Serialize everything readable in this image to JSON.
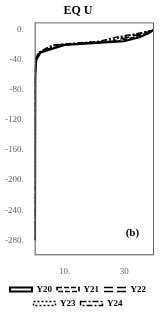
{
  "chart_data": {
    "type": "line",
    "title": "EQ U",
    "xlim": [
      0,
      40
    ],
    "ylim": [
      -300,
      10
    ],
    "xticks": [
      {
        "value": 10,
        "label": "10."
      },
      30
    ],
    "yticks": [
      {
        "value": 0,
        "label": "0."
      },
      {
        "value": -40,
        "label": "-40."
      },
      {
        "value": -80,
        "label": "-80."
      },
      {
        "value": -120,
        "label": "-120."
      },
      {
        "value": -160,
        "label": "-160."
      },
      {
        "value": -200,
        "label": "-200."
      },
      {
        "value": -240,
        "label": "-240."
      },
      {
        "value": -280,
        "label": "-280."
      }
    ],
    "grid": false,
    "legend": "bottom",
    "annotations": [
      {
        "text": "(b)",
        "x": 35,
        "y": -278
      }
    ],
    "series": [
      {
        "name": "Y20",
        "color": "#000000",
        "line_style": "solid",
        "x": [
          40,
          38,
          35,
          30,
          10,
          2,
          0.5,
          0.2,
          0.1,
          0.1,
          0.1,
          0.1,
          0.1,
          0.1,
          0.1
        ],
        "values": [
          0,
          -5,
          -10,
          -15,
          -20,
          -30,
          -40,
          -60,
          -80,
          -100,
          -140,
          -180,
          -220,
          -260,
          -280
        ]
      },
      {
        "name": "Y21",
        "color": "#000000",
        "line_style": "dashed",
        "x": [
          40,
          37,
          33,
          28,
          9,
          1.8,
          0.4,
          0.2,
          0.1,
          0.1,
          0.1,
          0.1,
          0.1,
          0.1,
          0.1
        ],
        "values": [
          0,
          -5,
          -10,
          -15,
          -20,
          -30,
          -40,
          -60,
          -80,
          -100,
          -140,
          -180,
          -220,
          -260,
          -280
        ]
      },
      {
        "name": "Y22",
        "color": "#000000",
        "line_style": "long_dashed",
        "x": [
          40,
          36,
          31,
          26,
          8,
          1.6,
          0.3,
          0.1,
          0.1,
          0.1,
          0.1,
          0.1,
          0.1,
          0.1,
          0.1
        ],
        "values": [
          0,
          -5,
          -10,
          -15,
          -20,
          -30,
          -40,
          -60,
          -80,
          -100,
          -140,
          -180,
          -220,
          -260,
          -280
        ]
      },
      {
        "name": "Y23",
        "color": "#000000",
        "line_style": "dotted",
        "x": [
          40,
          35,
          29,
          24,
          7,
          1.4,
          0.3,
          0.1,
          0.1,
          0.1,
          0.1,
          0.1,
          0.1,
          0.1,
          0.1
        ],
        "values": [
          0,
          -5,
          -10,
          -15,
          -20,
          -30,
          -40,
          -60,
          -80,
          -100,
          -140,
          -180,
          -220,
          -260,
          -280
        ]
      },
      {
        "name": "Y24",
        "color": "#000000",
        "line_style": "dashdot",
        "x": [
          40,
          34,
          27,
          22,
          6,
          1.2,
          0.2,
          0.1,
          0.1,
          0.1,
          0.1,
          0.1,
          0.1,
          0.1,
          0.1
        ],
        "values": [
          0,
          -5,
          -10,
          -15,
          -20,
          -30,
          -40,
          -60,
          -80,
          -100,
          -140,
          -180,
          -220,
          -260,
          -280
        ]
      }
    ]
  }
}
